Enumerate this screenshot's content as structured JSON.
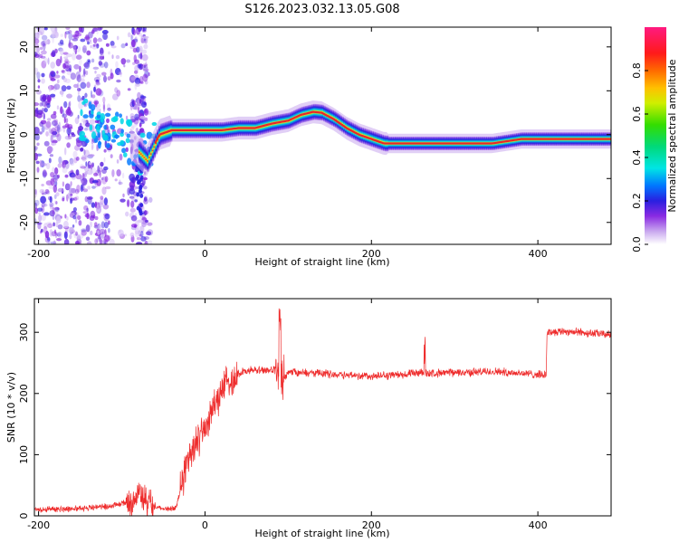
{
  "title": "S126.2023.032.13.05.G08",
  "colors": {
    "snr_line": "#ee2b2b",
    "ridge_core": "#e8262a",
    "noise": "#7b1fe0"
  },
  "chart_data": [
    {
      "type": "heatmap",
      "xlabel": "Height of straight line (km)",
      "ylabel": "Frequency (Hz)",
      "xlim": [
        -205,
        488
      ],
      "ylim": [
        -25,
        24.5
      ],
      "xticks": [
        -200,
        0,
        200,
        400
      ],
      "yticks": [
        -20,
        -10,
        0,
        10,
        20
      ],
      "colorbar": {
        "label": "Normalized spectral amplitude",
        "range": [
          0,
          1
        ],
        "ticks": [
          0.0,
          0.2,
          0.4,
          0.6,
          0.8
        ]
      },
      "ridge_center_hz": {
        "x": [
          -140,
          -120,
          -100,
          -85,
          -70,
          -55,
          -40,
          -20,
          0,
          20,
          40,
          60,
          80,
          100,
          115,
          130,
          140,
          155,
          170,
          185,
          200,
          215,
          250,
          300,
          345,
          380,
          420,
          488
        ],
        "y": [
          3,
          2,
          0,
          -3,
          -6,
          0,
          1,
          1,
          1,
          1,
          1.5,
          1.5,
          2.5,
          3.2,
          4.5,
          5.2,
          5,
          3.5,
          1.5,
          0,
          -1,
          -2,
          -2,
          -2,
          -2,
          -1,
          -1,
          -1
        ]
      }
    },
    {
      "type": "line",
      "xlabel": "Height of straight line (km)",
      "ylabel": "SNR (10 * v/v)",
      "xlim": [
        -205,
        488
      ],
      "ylim": [
        0,
        355
      ],
      "xticks": [
        -200,
        0,
        200,
        400
      ],
      "yticks": [
        0,
        100,
        200,
        300
      ],
      "trend": {
        "x": [
          -205,
          -160,
          -120,
          -90,
          -80,
          -70,
          -50,
          -35,
          -30,
          -20,
          -10,
          0,
          10,
          20,
          30,
          40,
          50,
          60,
          80,
          90,
          95,
          100,
          150,
          200,
          260,
          300,
          350,
          410,
          411,
          430,
          488
        ],
        "y": [
          10,
          12,
          15,
          22,
          40,
          20,
          12,
          12,
          40,
          100,
          120,
          140,
          180,
          205,
          222,
          232,
          237,
          238,
          238,
          238,
          225,
          235,
          232,
          228,
          233,
          234,
          236,
          230,
          300,
          302,
          296
        ]
      }
    }
  ]
}
